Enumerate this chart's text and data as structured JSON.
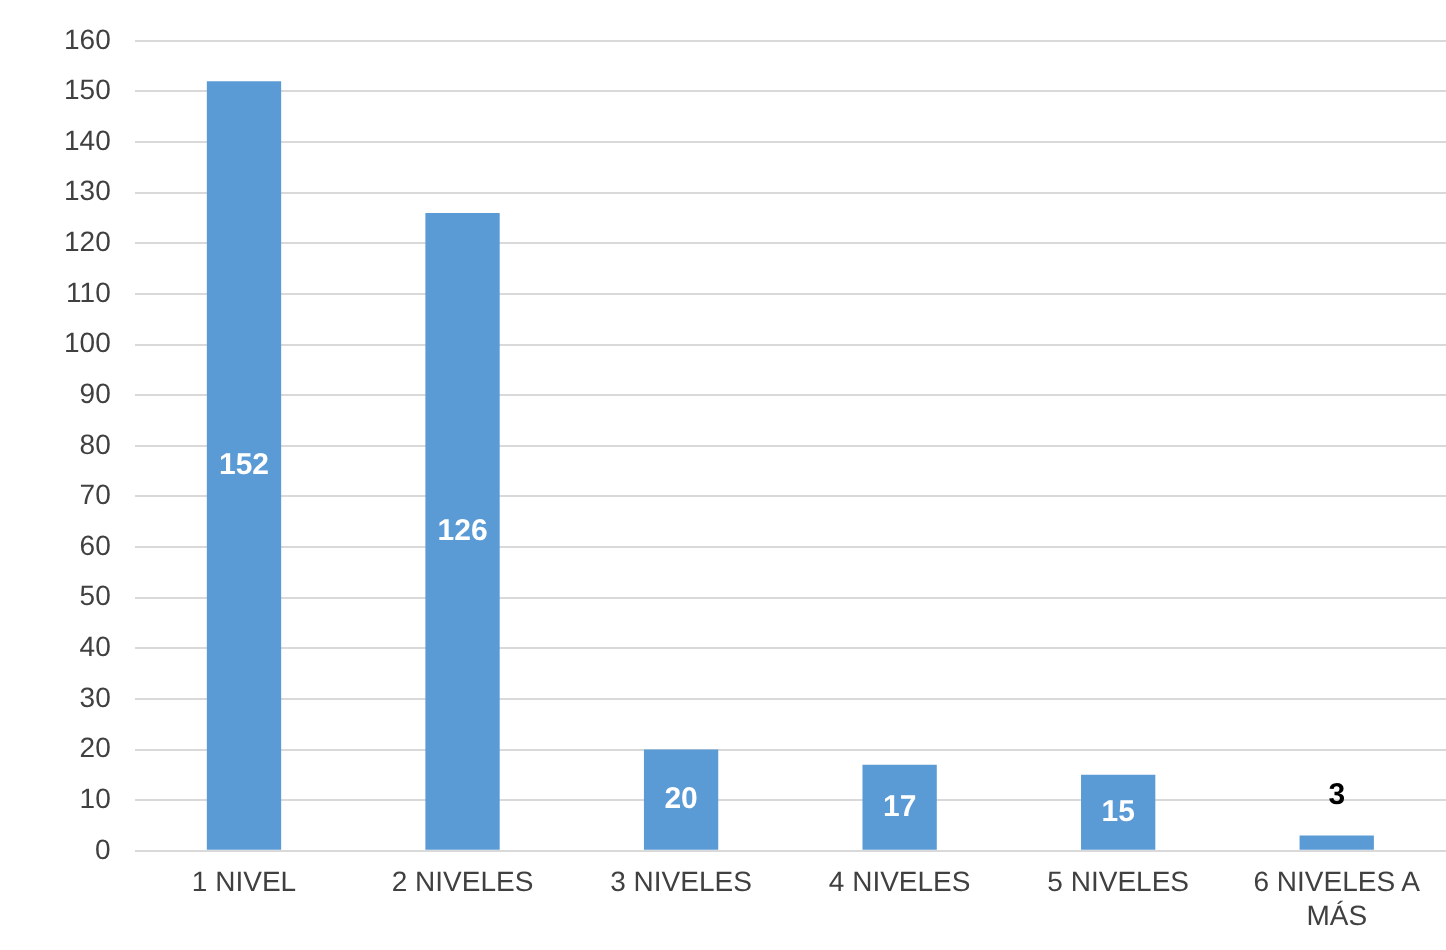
{
  "chart_data": {
    "type": "bar",
    "categories": [
      "1 NIVEL",
      "2 NIVELES",
      "3 NIVELES",
      "4 NIVELES",
      "5 NIVELES",
      "6 NIVELES A MÁS"
    ],
    "values": [
      152,
      126,
      20,
      17,
      15,
      3
    ],
    "color": "#5b9bd5",
    "ylim": [
      0,
      160
    ],
    "yticks": [
      0,
      10,
      20,
      30,
      40,
      50,
      60,
      70,
      80,
      90,
      100,
      110,
      120,
      130,
      140,
      150,
      160
    ],
    "grid": "y",
    "data_labels": true,
    "legend": false
  }
}
